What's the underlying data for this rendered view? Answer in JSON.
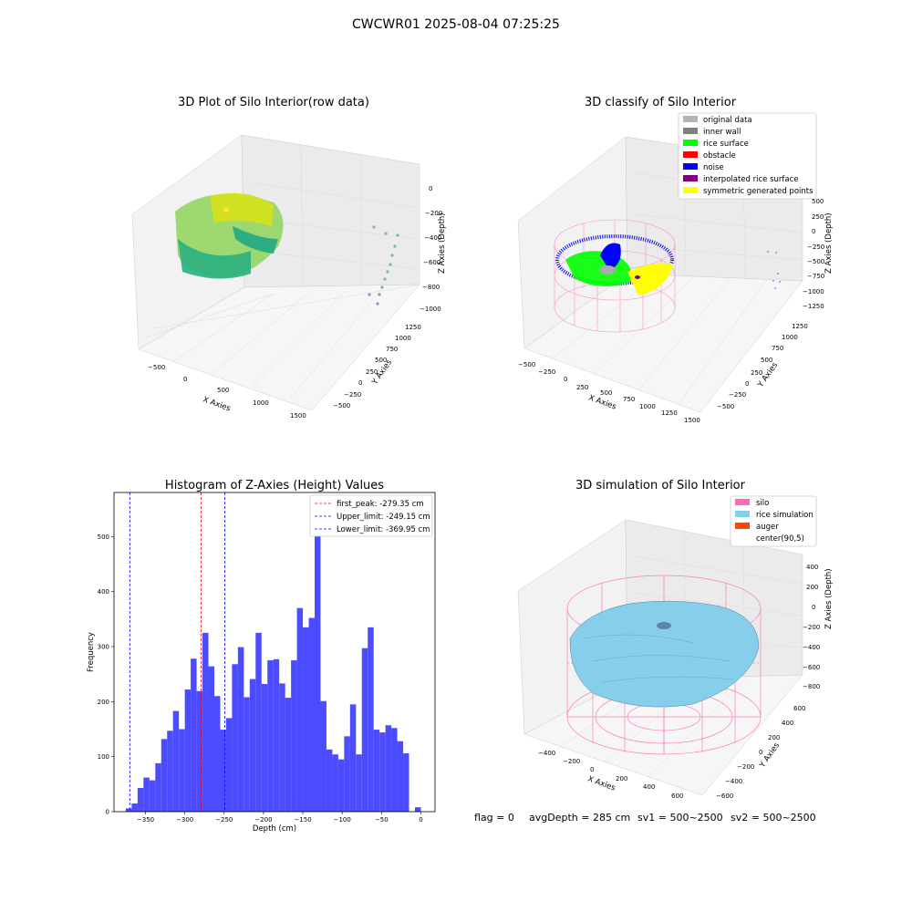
{
  "figure_title": "CWCWR01 2025-08-04 07:25:25",
  "footer": {
    "flag": "flag = 0",
    "avg_depth": "avgDepth = 285 cm",
    "sv1": "sv1 = 500~2500",
    "sv2": "sv2 = 500~2500"
  },
  "colors": {
    "hist_bar": "#4b4bff",
    "first_peak": "#ff0000",
    "limit_line": "#0000ff",
    "silo": "#ff69b4",
    "rice_simulation": "#87ceeb",
    "auger": "#ff4500",
    "original_data": "#b3b3b3",
    "inner_wall": "#808080",
    "rice_surface": "#00ff00",
    "obstacle": "#ff0000",
    "noise": "#0000ff",
    "interpolated_rice_surface": "#800080",
    "symmetric_generated_points": "#ffff00"
  },
  "chart_data": [
    {
      "type": "scatter",
      "projection": "3d",
      "title": "3D Plot of Silo Interior(row data)",
      "xlabel": "X Axies",
      "ylabel": "Y Axies",
      "zlabel": "Z Axies (Depth)",
      "x_ticks": [
        "−500",
        "0",
        "500",
        "1000",
        "1500"
      ],
      "y_ticks": [
        "−500",
        "−250",
        "0",
        "250",
        "500",
        "750",
        "1000",
        "1250"
      ],
      "z_ticks": [
        "0",
        "−200",
        "−400",
        "−600",
        "−800",
        "−1000"
      ]
    },
    {
      "type": "scatter",
      "projection": "3d",
      "title": "3D classify of Silo Interior",
      "xlabel": "X Axies",
      "ylabel": "Y Axies",
      "zlabel": "Z Axies (Depth)",
      "x_ticks": [
        "−500",
        "−250",
        "0",
        "250",
        "500",
        "750",
        "1000",
        "1250",
        "1500"
      ],
      "y_ticks": [
        "−500",
        "−250",
        "0",
        "250",
        "500",
        "750",
        "1000",
        "1250"
      ],
      "z_ticks": [
        "500",
        "250",
        "0",
        "−250",
        "−500",
        "−750",
        "−1000",
        "−1250"
      ],
      "legend": [
        "original data",
        "inner wall",
        "rice surface",
        "obstacle",
        "noise",
        "interpolated rice surface",
        "symmetric generated points"
      ],
      "legend_placement": "top-right"
    },
    {
      "type": "bar",
      "title": "Histogram of Z-Axies (Height) Values",
      "xlabel": "Depth (cm)",
      "ylabel": "Frequency",
      "xlim": [
        -390,
        18
      ],
      "ylim": [
        0,
        580
      ],
      "x_ticks": [
        -350,
        -300,
        -250,
        -200,
        -150,
        -100,
        -50,
        0
      ],
      "x_tick_labels": [
        "−350",
        "−300",
        "−250",
        "−200",
        "−150",
        "−100",
        "−50",
        "0"
      ],
      "y_ticks": [
        0,
        100,
        200,
        300,
        400,
        500
      ],
      "y_tick_labels": [
        "0",
        "100",
        "200",
        "300",
        "400",
        "500"
      ],
      "bin_start": -375,
      "bin_width": 7.5,
      "values": [
        6,
        15,
        43,
        62,
        57,
        88,
        132,
        147,
        183,
        150,
        222,
        278,
        219,
        325,
        264,
        210,
        149,
        170,
        268,
        299,
        208,
        241,
        325,
        232,
        275,
        277,
        233,
        207,
        275,
        370,
        335,
        352,
        510,
        201,
        113,
        104,
        95,
        137,
        195,
        104,
        297,
        335,
        149,
        144,
        157,
        152,
        128,
        106,
        0,
        8
      ],
      "lines": [
        {
          "label": "first_peak: -279.35 cm",
          "x": -279.35,
          "color_key": "first_peak"
        },
        {
          "label": "Upper_limit: -249.15 cm",
          "x": -249.15,
          "color_key": "limit_line"
        },
        {
          "label": "Lower_limit: -369.95 cm",
          "x": -369.95,
          "color_key": "limit_line"
        }
      ],
      "legend_placement": "top-right"
    },
    {
      "type": "area",
      "projection": "3d",
      "title": "3D simulation of Silo Interior",
      "xlabel": "X Axies",
      "ylabel": "Y Axies",
      "zlabel": "Z Axies (Depth)",
      "x_ticks": [
        "−400",
        "−200",
        "0",
        "200",
        "400",
        "600"
      ],
      "y_ticks": [
        "−600",
        "−400",
        "−200",
        "0",
        "200",
        "400",
        "600"
      ],
      "z_ticks": [
        "400",
        "200",
        "0",
        "−200",
        "−400",
        "−600",
        "−800"
      ],
      "legend": [
        "silo",
        "rice simulation",
        "auger",
        "center(90,5)"
      ],
      "legend_placement": "top-right"
    }
  ]
}
